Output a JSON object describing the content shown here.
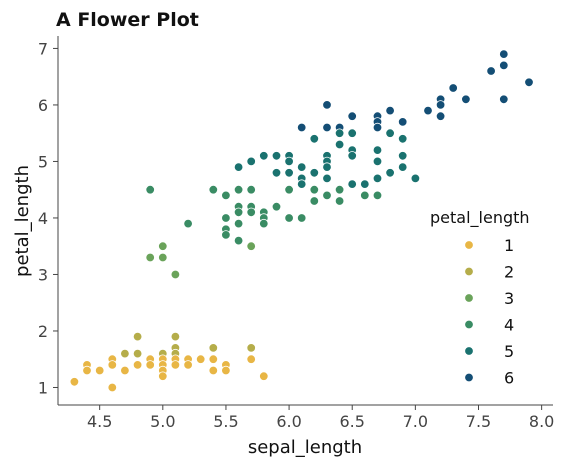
{
  "chart_data": {
    "type": "scatter",
    "title": "A Flower Plot",
    "xlabel": "sepal_length",
    "ylabel": "petal_length",
    "xlim": [
      4.17,
      8.09
    ],
    "ylim": [
      0.69,
      7.22
    ],
    "xticks": [
      "4.5",
      "5.0",
      "5.5",
      "6.0",
      "6.5",
      "7.0",
      "7.5",
      "8.0"
    ],
    "yticks": [
      "1",
      "2",
      "3",
      "4",
      "5",
      "6",
      "7"
    ],
    "grid": false,
    "legend": {
      "title": "petal_length",
      "placement": "right",
      "entries": [
        {
          "label": "2",
          "value": 2,
          "color": "#b5ad4a"
        },
        {
          "label": "1",
          "value": 1,
          "color": "#e8b645"
        },
        {
          "label": "3",
          "value": 3,
          "color": "#6aa35a"
        },
        {
          "label": "4",
          "value": 4,
          "color": "#3a8c64"
        },
        {
          "label": "5",
          "value": 5,
          "color": "#1a726f"
        },
        {
          "label": "6",
          "value": 6,
          "color": "#144e75"
        }
      ]
    },
    "points": [
      [
        4.3,
        1.1
      ],
      [
        4.4,
        1.4
      ],
      [
        4.4,
        1.3
      ],
      [
        4.5,
        1.3
      ],
      [
        4.6,
        1.5
      ],
      [
        4.6,
        1.4
      ],
      [
        4.6,
        1.0
      ],
      [
        4.7,
        1.6
      ],
      [
        4.7,
        1.3
      ],
      [
        4.8,
        1.9
      ],
      [
        4.8,
        1.6
      ],
      [
        4.8,
        1.4
      ],
      [
        4.9,
        1.5
      ],
      [
        4.9,
        1.4
      ],
      [
        5.0,
        1.6
      ],
      [
        5.0,
        1.5
      ],
      [
        5.0,
        1.4
      ],
      [
        5.0,
        1.3
      ],
      [
        5.0,
        1.2
      ],
      [
        5.1,
        1.9
      ],
      [
        5.1,
        1.7
      ],
      [
        5.1,
        1.6
      ],
      [
        5.1,
        1.5
      ],
      [
        5.1,
        1.4
      ],
      [
        5.2,
        1.5
      ],
      [
        5.2,
        1.4
      ],
      [
        5.3,
        1.5
      ],
      [
        5.4,
        1.7
      ],
      [
        5.4,
        1.5
      ],
      [
        5.4,
        1.3
      ],
      [
        5.5,
        1.4
      ],
      [
        5.5,
        1.3
      ],
      [
        5.7,
        1.7
      ],
      [
        5.7,
        1.5
      ],
      [
        5.8,
        1.2
      ],
      [
        4.9,
        4.5
      ],
      [
        4.9,
        3.3
      ],
      [
        5.0,
        3.5
      ],
      [
        5.0,
        3.3
      ],
      [
        5.1,
        3.0
      ],
      [
        5.2,
        3.9
      ],
      [
        5.4,
        4.5
      ],
      [
        5.5,
        4.4
      ],
      [
        5.5,
        4.0
      ],
      [
        5.5,
        3.8
      ],
      [
        5.5,
        3.7
      ],
      [
        5.6,
        4.9
      ],
      [
        5.6,
        4.5
      ],
      [
        5.6,
        4.2
      ],
      [
        5.6,
        4.1
      ],
      [
        5.6,
        3.9
      ],
      [
        5.6,
        3.6
      ],
      [
        5.7,
        5.0
      ],
      [
        5.7,
        4.5
      ],
      [
        5.7,
        4.2
      ],
      [
        5.7,
        4.1
      ],
      [
        5.7,
        3.5
      ],
      [
        5.8,
        5.1
      ],
      [
        5.8,
        4.1
      ],
      [
        5.8,
        4.0
      ],
      [
        5.8,
        3.9
      ],
      [
        5.9,
        5.1
      ],
      [
        5.9,
        4.8
      ],
      [
        5.9,
        4.2
      ],
      [
        6.0,
        5.1
      ],
      [
        6.0,
        5.0
      ],
      [
        6.0,
        4.8
      ],
      [
        6.0,
        4.5
      ],
      [
        6.0,
        4.0
      ],
      [
        6.1,
        5.6
      ],
      [
        6.1,
        4.9
      ],
      [
        6.1,
        4.7
      ],
      [
        6.1,
        4.6
      ],
      [
        6.1,
        4.0
      ],
      [
        6.2,
        5.4
      ],
      [
        6.2,
        4.8
      ],
      [
        6.2,
        4.5
      ],
      [
        6.2,
        4.3
      ],
      [
        6.3,
        6.0
      ],
      [
        6.3,
        5.6
      ],
      [
        6.3,
        5.1
      ],
      [
        6.3,
        5.0
      ],
      [
        6.3,
        4.9
      ],
      [
        6.3,
        4.7
      ],
      [
        6.3,
        4.4
      ],
      [
        6.4,
        5.6
      ],
      [
        6.4,
        5.5
      ],
      [
        6.4,
        5.3
      ],
      [
        6.4,
        4.5
      ],
      [
        6.4,
        4.3
      ],
      [
        6.5,
        5.8
      ],
      [
        6.5,
        5.5
      ],
      [
        6.5,
        5.2
      ],
      [
        6.5,
        5.1
      ],
      [
        6.5,
        4.6
      ],
      [
        6.6,
        4.6
      ],
      [
        6.6,
        4.4
      ],
      [
        6.7,
        5.8
      ],
      [
        6.7,
        5.7
      ],
      [
        6.7,
        5.6
      ],
      [
        6.7,
        5.2
      ],
      [
        6.7,
        5.0
      ],
      [
        6.7,
        4.7
      ],
      [
        6.7,
        4.4
      ],
      [
        6.8,
        5.9
      ],
      [
        6.8,
        5.5
      ],
      [
        6.8,
        4.8
      ],
      [
        6.9,
        5.7
      ],
      [
        6.9,
        5.4
      ],
      [
        6.9,
        5.1
      ],
      [
        6.9,
        4.9
      ],
      [
        7.0,
        4.7
      ],
      [
        7.1,
        5.9
      ],
      [
        7.2,
        6.1
      ],
      [
        7.2,
        6.0
      ],
      [
        7.2,
        5.8
      ],
      [
        7.3,
        6.3
      ],
      [
        7.4,
        6.1
      ],
      [
        7.6,
        6.6
      ],
      [
        7.7,
        6.9
      ],
      [
        7.7,
        6.7
      ],
      [
        7.7,
        6.1
      ],
      [
        7.9,
        6.4
      ]
    ]
  }
}
